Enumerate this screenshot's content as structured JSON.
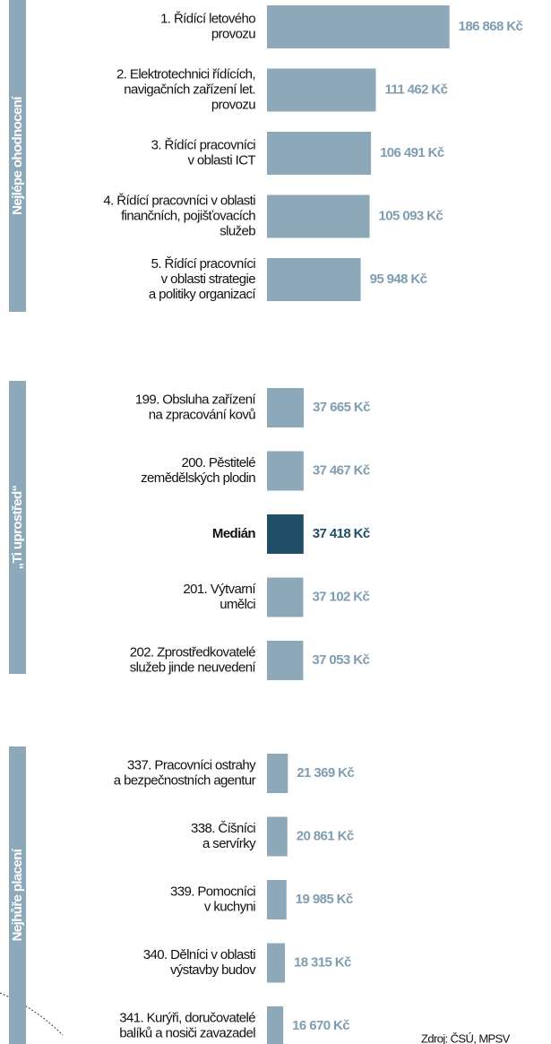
{
  "chart_data": [
    {
      "type": "bar",
      "group": "Nejlépe ohodnocení",
      "categories": [
        [
          "1. Řídící letového",
          "provozu"
        ],
        [
          "2.  Elektrotechnici řídících,",
          "navigačních zařízení let.",
          "provozu"
        ],
        [
          "3. Řídící pracovníci",
          "v oblasti ICT"
        ],
        [
          "4. Řídící pracovníci v oblasti",
          "finančních, pojišťovacích",
          "služeb"
        ],
        [
          "5. Řídící pracovníci",
          "v oblasti strategie",
          "a politiky organizací"
        ]
      ],
      "values": [
        186868,
        111462,
        106491,
        105093,
        95948
      ],
      "value_labels": [
        "186 868 Kč",
        "111 462 Kč",
        "106 491 Kč",
        "105 093 Kč",
        "95 948 Kč"
      ],
      "color": "#8da8b8",
      "xlim": [
        0,
        200000
      ]
    },
    {
      "type": "bar",
      "group": "„Ti uprostřed“",
      "categories": [
        [
          "199. Obsluha zařízení",
          "na zpracování kovů"
        ],
        [
          "200. Pěstitelé",
          "zemědělských plodin"
        ],
        [
          "Medián"
        ],
        [
          "201. Výtvarní",
          "umělci"
        ],
        [
          "202. Zprostředkovatelé",
          "služeb jinde neuvedení"
        ]
      ],
      "values": [
        37665,
        37467,
        37418,
        37102,
        37053
      ],
      "value_labels": [
        "37 665 Kč",
        "37 467 Kč",
        "37 418 Kč",
        "37 102 Kč",
        "37 053 Kč"
      ],
      "color": "#8da8b8",
      "highlight": {
        "index": 2,
        "color": "#1f4e66"
      },
      "xlim": [
        0,
        200000
      ]
    },
    {
      "type": "bar",
      "group": "Nejhůře placení",
      "categories": [
        [
          "337. Pracovníci ostrahy",
          "a bezpečnostních agentur"
        ],
        [
          "338. Číšníci",
          "a servírky"
        ],
        [
          "339. Pomocníci",
          "v kuchyni"
        ],
        [
          "340. Dělníci v oblasti",
          "výstavby budov"
        ],
        [
          "341. Kurýři, doručovatelé",
          "balíků a nosiči zavazadel"
        ]
      ],
      "values": [
        21369,
        20861,
        19985,
        18315,
        16670
      ],
      "value_labels": [
        "21 369 Kč",
        "20 861 Kč",
        "19 985 Kč",
        "18 315 Kč",
        "16 670 Kč"
      ],
      "color": "#8da8b8",
      "xlim": [
        0,
        200000
      ]
    }
  ],
  "source": "Zdroj: ČSÚ, MPSV"
}
